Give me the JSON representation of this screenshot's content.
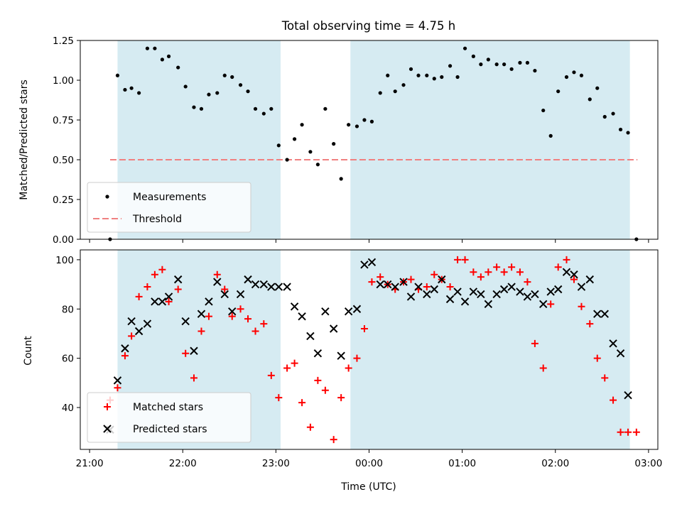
{
  "chart_data": [
    {
      "type": "scatter",
      "title": "Total observing time = 4.75 h",
      "xlabel": "",
      "ylabel": "Matched/Predicted stars",
      "x_unit": "hours since 21:00 UTC",
      "xlim": [
        -0.1,
        6.1
      ],
      "ylim": [
        0,
        1.25
      ],
      "yticks": [
        "0.00",
        "0.25",
        "0.50",
        "0.75",
        "1.00",
        "1.25"
      ],
      "grid": false,
      "legend_position": "lower left",
      "shaded_intervals": [
        [
          0.3,
          2.05
        ],
        [
          2.8,
          5.8
        ]
      ],
      "threshold": {
        "name": "Threshold",
        "y": 0.5,
        "x_range": [
          0.22,
          5.88
        ],
        "color": "#f08080"
      },
      "series": [
        {
          "name": "Measurements",
          "color": "#000000",
          "marker": "dot",
          "x": [
            0.22,
            0.3,
            0.38,
            0.45,
            0.53,
            0.62,
            0.7,
            0.78,
            0.85,
            0.95,
            1.03,
            1.12,
            1.2,
            1.28,
            1.37,
            1.45,
            1.53,
            1.62,
            1.7,
            1.78,
            1.87,
            1.95,
            2.03,
            2.12,
            2.2,
            2.28,
            2.37,
            2.45,
            2.53,
            2.62,
            2.7,
            2.78,
            2.87,
            2.95,
            3.03,
            3.12,
            3.2,
            3.28,
            3.37,
            3.45,
            3.53,
            3.62,
            3.7,
            3.78,
            3.87,
            3.95,
            4.03,
            4.12,
            4.2,
            4.28,
            4.37,
            4.45,
            4.53,
            4.62,
            4.7,
            4.78,
            4.87,
            4.95,
            5.03,
            5.12,
            5.2,
            5.28,
            5.37,
            5.45,
            5.53,
            5.62,
            5.7,
            5.78,
            5.87
          ],
          "y": [
            0.0,
            1.03,
            0.94,
            0.95,
            0.92,
            1.2,
            1.2,
            1.13,
            1.15,
            1.08,
            0.96,
            0.83,
            0.82,
            0.91,
            0.92,
            1.03,
            1.02,
            0.97,
            0.93,
            0.82,
            0.79,
            0.82,
            0.59,
            0.5,
            0.63,
            0.72,
            0.55,
            0.47,
            0.82,
            0.6,
            0.38,
            0.72,
            0.71,
            0.75,
            0.74,
            0.92,
            1.03,
            0.93,
            0.97,
            1.07,
            1.03,
            1.03,
            1.01,
            1.02,
            1.09,
            1.02,
            1.2,
            1.15,
            1.1,
            1.13,
            1.1,
            1.1,
            1.07,
            1.11,
            1.11,
            1.06,
            0.81,
            0.65,
            0.93,
            1.02,
            1.05,
            1.03,
            0.88,
            0.95,
            0.77,
            0.79,
            0.69,
            0.67,
            0.0
          ]
        }
      ]
    },
    {
      "type": "scatter",
      "title": "",
      "xlabel": "Time (UTC)",
      "ylabel": "Count",
      "x_unit": "hours since 21:00 UTC",
      "xlim": [
        -0.1,
        6.1
      ],
      "ylim": [
        23,
        104
      ],
      "xticks": [
        "21:00",
        "22:00",
        "23:00",
        "00:00",
        "01:00",
        "02:00",
        "03:00"
      ],
      "yticks": [
        "40",
        "60",
        "80",
        "100"
      ],
      "grid": false,
      "legend_position": "lower left",
      "shaded_intervals": [
        [
          0.3,
          2.05
        ],
        [
          2.8,
          5.8
        ]
      ],
      "series": [
        {
          "name": "Matched stars",
          "color": "#ff0000",
          "marker": "plus",
          "x": [
            0.22,
            0.3,
            0.38,
            0.45,
            0.53,
            0.62,
            0.7,
            0.78,
            0.85,
            0.95,
            1.03,
            1.12,
            1.2,
            1.28,
            1.37,
            1.45,
            1.53,
            1.62,
            1.7,
            1.78,
            1.87,
            1.95,
            2.03,
            2.12,
            2.2,
            2.28,
            2.37,
            2.45,
            2.53,
            2.62,
            2.7,
            2.78,
            2.87,
            2.95,
            3.03,
            3.12,
            3.2,
            3.28,
            3.37,
            3.45,
            3.53,
            3.62,
            3.7,
            3.78,
            3.87,
            3.95,
            4.03,
            4.12,
            4.2,
            4.28,
            4.37,
            4.45,
            4.53,
            4.62,
            4.7,
            4.78,
            4.87,
            4.95,
            5.03,
            5.12,
            5.2,
            5.28,
            5.37,
            5.45,
            5.53,
            5.62,
            5.7,
            5.78,
            5.87
          ],
          "y": [
            43,
            48,
            61,
            69,
            85,
            89,
            94,
            96,
            83,
            88,
            62,
            52,
            71,
            77,
            94,
            88,
            77,
            80,
            76,
            71,
            74,
            53,
            44,
            56,
            58,
            42,
            32,
            51,
            47,
            27,
            44,
            56,
            60,
            72,
            91,
            93,
            90,
            88,
            91,
            92,
            88,
            89,
            94,
            92,
            89,
            100,
            100,
            95,
            93,
            95,
            97,
            95,
            97,
            95,
            91,
            66,
            56,
            82,
            97,
            100,
            92,
            81,
            74,
            60,
            52,
            43,
            30,
            30,
            30
          ]
        },
        {
          "name": "Predicted stars",
          "color": "#000000",
          "marker": "x",
          "x": [
            0.22,
            0.3,
            0.38,
            0.45,
            0.53,
            0.62,
            0.7,
            0.78,
            0.85,
            0.95,
            1.03,
            1.12,
            1.2,
            1.28,
            1.37,
            1.45,
            1.53,
            1.62,
            1.7,
            1.78,
            1.87,
            1.95,
            2.03,
            2.12,
            2.2,
            2.28,
            2.37,
            2.45,
            2.53,
            2.62,
            2.7,
            2.78,
            2.87,
            2.95,
            3.03,
            3.12,
            3.2,
            3.28,
            3.37,
            3.45,
            3.53,
            3.62,
            3.7,
            3.78,
            3.87,
            3.95,
            4.03,
            4.12,
            4.2,
            4.28,
            4.37,
            4.45,
            4.53,
            4.62,
            4.7,
            4.78,
            4.87,
            4.95,
            5.03,
            5.12,
            5.2,
            5.28,
            5.37,
            5.45,
            5.53,
            5.62,
            5.7,
            5.78
          ],
          "y": [
            31,
            51,
            64,
            75,
            71,
            74,
            83,
            83,
            85,
            92,
            75,
            63,
            78,
            83,
            91,
            86,
            79,
            86,
            92,
            90,
            90,
            89,
            89,
            89,
            81,
            77,
            69,
            62,
            79,
            72,
            61,
            79,
            80,
            98,
            99,
            90,
            90,
            89,
            91,
            85,
            89,
            86,
            88,
            92,
            84,
            87,
            83,
            87,
            86,
            82,
            86,
            88,
            89,
            87,
            85,
            86,
            82,
            87,
            88,
            95,
            94,
            89,
            92,
            78,
            78,
            66,
            62,
            45
          ]
        }
      ]
    }
  ]
}
